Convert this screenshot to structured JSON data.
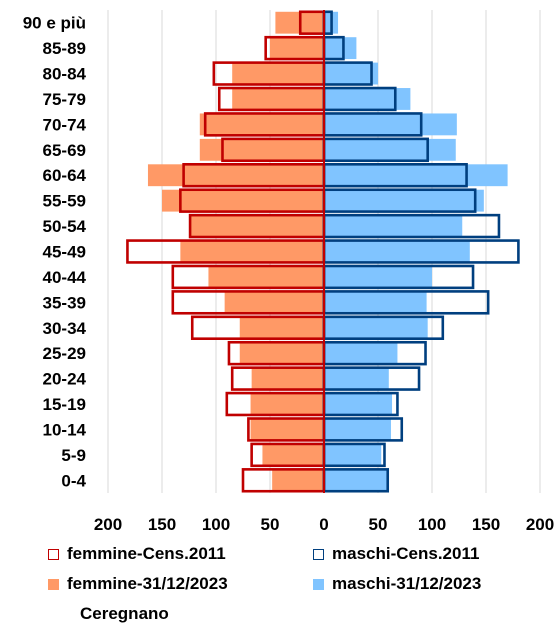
{
  "chart_data": {
    "type": "bar",
    "orientation": "horizontal",
    "subtype": "population-pyramid",
    "title": "Ceregnano",
    "categories": [
      "0-4",
      "5-9",
      "10-14",
      "15-19",
      "20-24",
      "25-29",
      "30-34",
      "35-39",
      "40-44",
      "45-49",
      "50-54",
      "55-59",
      "60-64",
      "65-69",
      "70-74",
      "75-79",
      "80-84",
      "85-89",
      "90 e più"
    ],
    "x_ticks": [
      "200",
      "150",
      "100",
      "50",
      "0",
      "50",
      "100",
      "150",
      "200"
    ],
    "xlim": [
      -200,
      200
    ],
    "grid": true,
    "legend_position": "bottom",
    "series": [
      {
        "name": "femmine-Cens.2011",
        "side": "left",
        "style": "outline",
        "color": "#c00000",
        "values": [
          75,
          67,
          70,
          90,
          85,
          88,
          122,
          140,
          140,
          182,
          124,
          133,
          130,
          94,
          110,
          97,
          102,
          54,
          22
        ]
      },
      {
        "name": "maschi-Cens.2011",
        "side": "right",
        "style": "outline",
        "color": "#003f7f",
        "values": [
          59,
          56,
          72,
          68,
          88,
          94,
          110,
          152,
          138,
          180,
          162,
          140,
          132,
          96,
          90,
          66,
          44,
          18,
          7
        ]
      },
      {
        "name": "femmine-31/12/2023",
        "side": "left",
        "style": "fill",
        "color": "#ff9966",
        "values": [
          48,
          57,
          68,
          68,
          67,
          78,
          78,
          92,
          107,
          133,
          124,
          150,
          163,
          115,
          115,
          85,
          85,
          50,
          45
        ]
      },
      {
        "name": "maschi-31/12/2023",
        "side": "right",
        "style": "fill",
        "color": "#80c4ff",
        "values": [
          58,
          53,
          62,
          63,
          60,
          68,
          96,
          95,
          100,
          135,
          128,
          148,
          170,
          122,
          123,
          80,
          50,
          30,
          13
        ]
      }
    ]
  }
}
